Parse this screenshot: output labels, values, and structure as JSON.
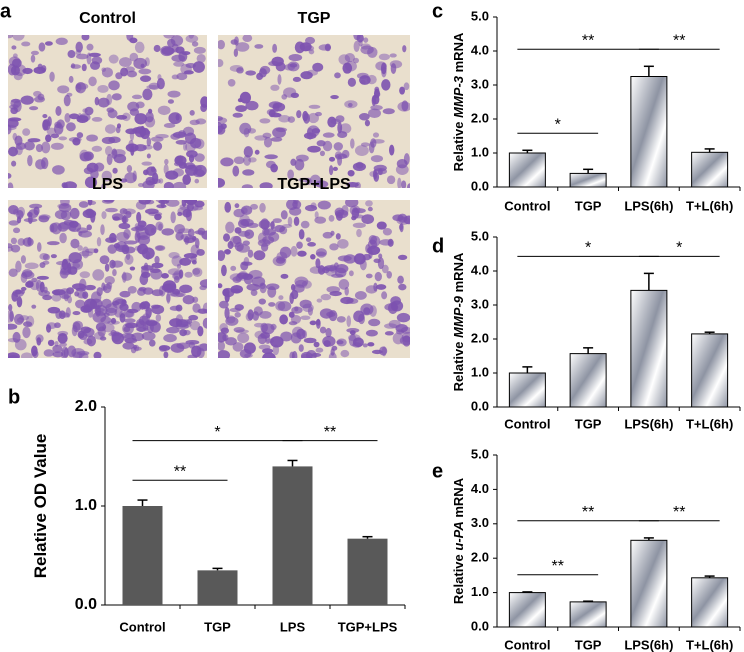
{
  "micrographs": {
    "letter": "a",
    "labels": [
      "Control",
      "TGP",
      "LPS",
      "TGP+LPS"
    ],
    "background": "#e9dfcd",
    "stain": "#7d52b0"
  },
  "chart_data": [
    {
      "type": "bar",
      "letter": "b",
      "categories": [
        "Control",
        "TGP",
        "LPS",
        "TGP+LPS"
      ],
      "values": [
        1.0,
        0.35,
        1.4,
        0.67
      ],
      "errors": [
        0.06,
        0.02,
        0.06,
        0.02
      ],
      "color": "#595959",
      "gradient": false,
      "ylabel": [
        {
          "text": "Relative OD Value",
          "italic": false
        }
      ],
      "ylim": [
        0,
        2
      ],
      "yticks": [
        {
          "value": 0,
          "label": "0.0"
        },
        {
          "value": 1,
          "label": "1.0"
        },
        {
          "value": 2,
          "label": "2.0"
        }
      ],
      "annotations": [
        {
          "text": "**",
          "between": [
            "Control",
            "TGP"
          ]
        },
        {
          "text": "*",
          "between": [
            "Control",
            "LPS"
          ]
        },
        {
          "text": "**",
          "between": [
            "LPS",
            "TGP+LPS"
          ]
        }
      ]
    },
    {
      "type": "bar",
      "letter": "c",
      "categories": [
        "Control",
        "TGP",
        "LPS(6h)",
        "T+L(6h)"
      ],
      "values": [
        1.0,
        0.4,
        3.25,
        1.02
      ],
      "errors": [
        0.08,
        0.12,
        0.3,
        0.1
      ],
      "color": "#8e94a3",
      "gradient": true,
      "ylabel": [
        {
          "text": "Relative ",
          "italic": false
        },
        {
          "text": "MMP-3",
          "italic": true
        },
        {
          "text": " mRNA",
          "italic": false
        }
      ],
      "ylim": [
        0,
        5
      ],
      "yticks": [
        {
          "value": 0,
          "label": "0.0"
        },
        {
          "value": 1,
          "label": "1.0"
        },
        {
          "value": 2,
          "label": "2.0"
        },
        {
          "value": 3,
          "label": "3.0"
        },
        {
          "value": 4,
          "label": "4.0"
        },
        {
          "value": 5,
          "label": "5.0"
        }
      ],
      "annotations": [
        {
          "text": "*",
          "between": [
            "Control",
            "TGP"
          ]
        },
        {
          "text": "**",
          "between": [
            "Control",
            "LPS(6h)"
          ]
        },
        {
          "text": "**",
          "between": [
            "LPS(6h)",
            "T+L(6h)"
          ]
        }
      ]
    },
    {
      "type": "bar",
      "letter": "d",
      "categories": [
        "Control",
        "TGP",
        "LPS(6h)",
        "T+L(6h)"
      ],
      "values": [
        1.0,
        1.57,
        3.43,
        2.15
      ],
      "errors": [
        0.18,
        0.17,
        0.5,
        0.05
      ],
      "color": "#8e94a3",
      "gradient": true,
      "ylabel": [
        {
          "text": "Relative ",
          "italic": false
        },
        {
          "text": "MMP-9",
          "italic": true
        },
        {
          "text": " mRNA",
          "italic": false
        }
      ],
      "ylim": [
        0,
        5
      ],
      "yticks": [
        {
          "value": 0,
          "label": "0.0"
        },
        {
          "value": 1,
          "label": "1.0"
        },
        {
          "value": 2,
          "label": "2.0"
        },
        {
          "value": 3,
          "label": "3.0"
        },
        {
          "value": 4,
          "label": "4.0"
        },
        {
          "value": 5,
          "label": "5.0"
        }
      ],
      "annotations": [
        {
          "text": "*",
          "between": [
            "Control",
            "LPS(6h)"
          ]
        },
        {
          "text": "*",
          "between": [
            "LPS(6h)",
            "T+L(6h)"
          ]
        }
      ]
    },
    {
      "type": "bar",
      "letter": "e",
      "categories": [
        "Control",
        "TGP",
        "LPS(6h)",
        "T+L(6h)"
      ],
      "values": [
        1.0,
        0.73,
        2.52,
        1.43
      ],
      "errors": [
        0.02,
        0.02,
        0.07,
        0.05
      ],
      "color": "#8e94a3",
      "gradient": true,
      "ylabel": [
        {
          "text": "Relative ",
          "italic": false
        },
        {
          "text": "u-PA",
          "italic": true
        },
        {
          "text": " mRNA",
          "italic": false
        }
      ],
      "ylim": [
        0,
        5
      ],
      "yticks": [
        {
          "value": 0,
          "label": "0.0"
        },
        {
          "value": 1,
          "label": "1.0"
        },
        {
          "value": 2,
          "label": "2.0"
        },
        {
          "value": 3,
          "label": "3.0"
        },
        {
          "value": 4,
          "label": "4.0"
        },
        {
          "value": 5,
          "label": "5.0"
        }
      ],
      "annotations": [
        {
          "text": "**",
          "between": [
            "Control",
            "TGP"
          ]
        },
        {
          "text": "**",
          "between": [
            "Control",
            "LPS(6h)"
          ]
        },
        {
          "text": "**",
          "between": [
            "LPS(6h)",
            "T+L(6h)"
          ]
        }
      ]
    }
  ]
}
